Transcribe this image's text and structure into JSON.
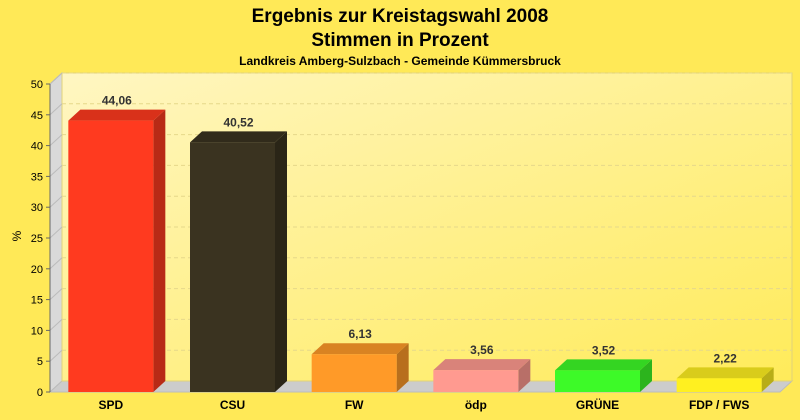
{
  "chart_data": {
    "type": "bar",
    "title": "Ergebnis zur Kreistagswahl 2008",
    "title_line2": "Stimmen in Prozent",
    "subtitle": "Landkreis Amberg-Sulzbach - Gemeinde Kümmersbruck",
    "xlabel": "",
    "ylabel": "%",
    "ylim": [
      0,
      50
    ],
    "yticks": [
      0,
      5,
      10,
      15,
      20,
      25,
      30,
      35,
      40,
      45,
      50
    ],
    "grid": true,
    "legend": "none",
    "categories": [
      "SPD",
      "CSU",
      "FW",
      "ödp",
      "GRÜNE",
      "FDP / FWS"
    ],
    "values": [
      44.06,
      40.52,
      6.13,
      3.56,
      3.52,
      2.22
    ],
    "value_labels": [
      "44,06",
      "40,52",
      "6,13",
      "3,56",
      "3,52",
      "2,22"
    ],
    "colors": [
      "#ff3a1f",
      "#3a3320",
      "#ff9a28",
      "#ff9a90",
      "#3dfa28",
      "#fff020"
    ],
    "background_color": "#ffe957"
  }
}
